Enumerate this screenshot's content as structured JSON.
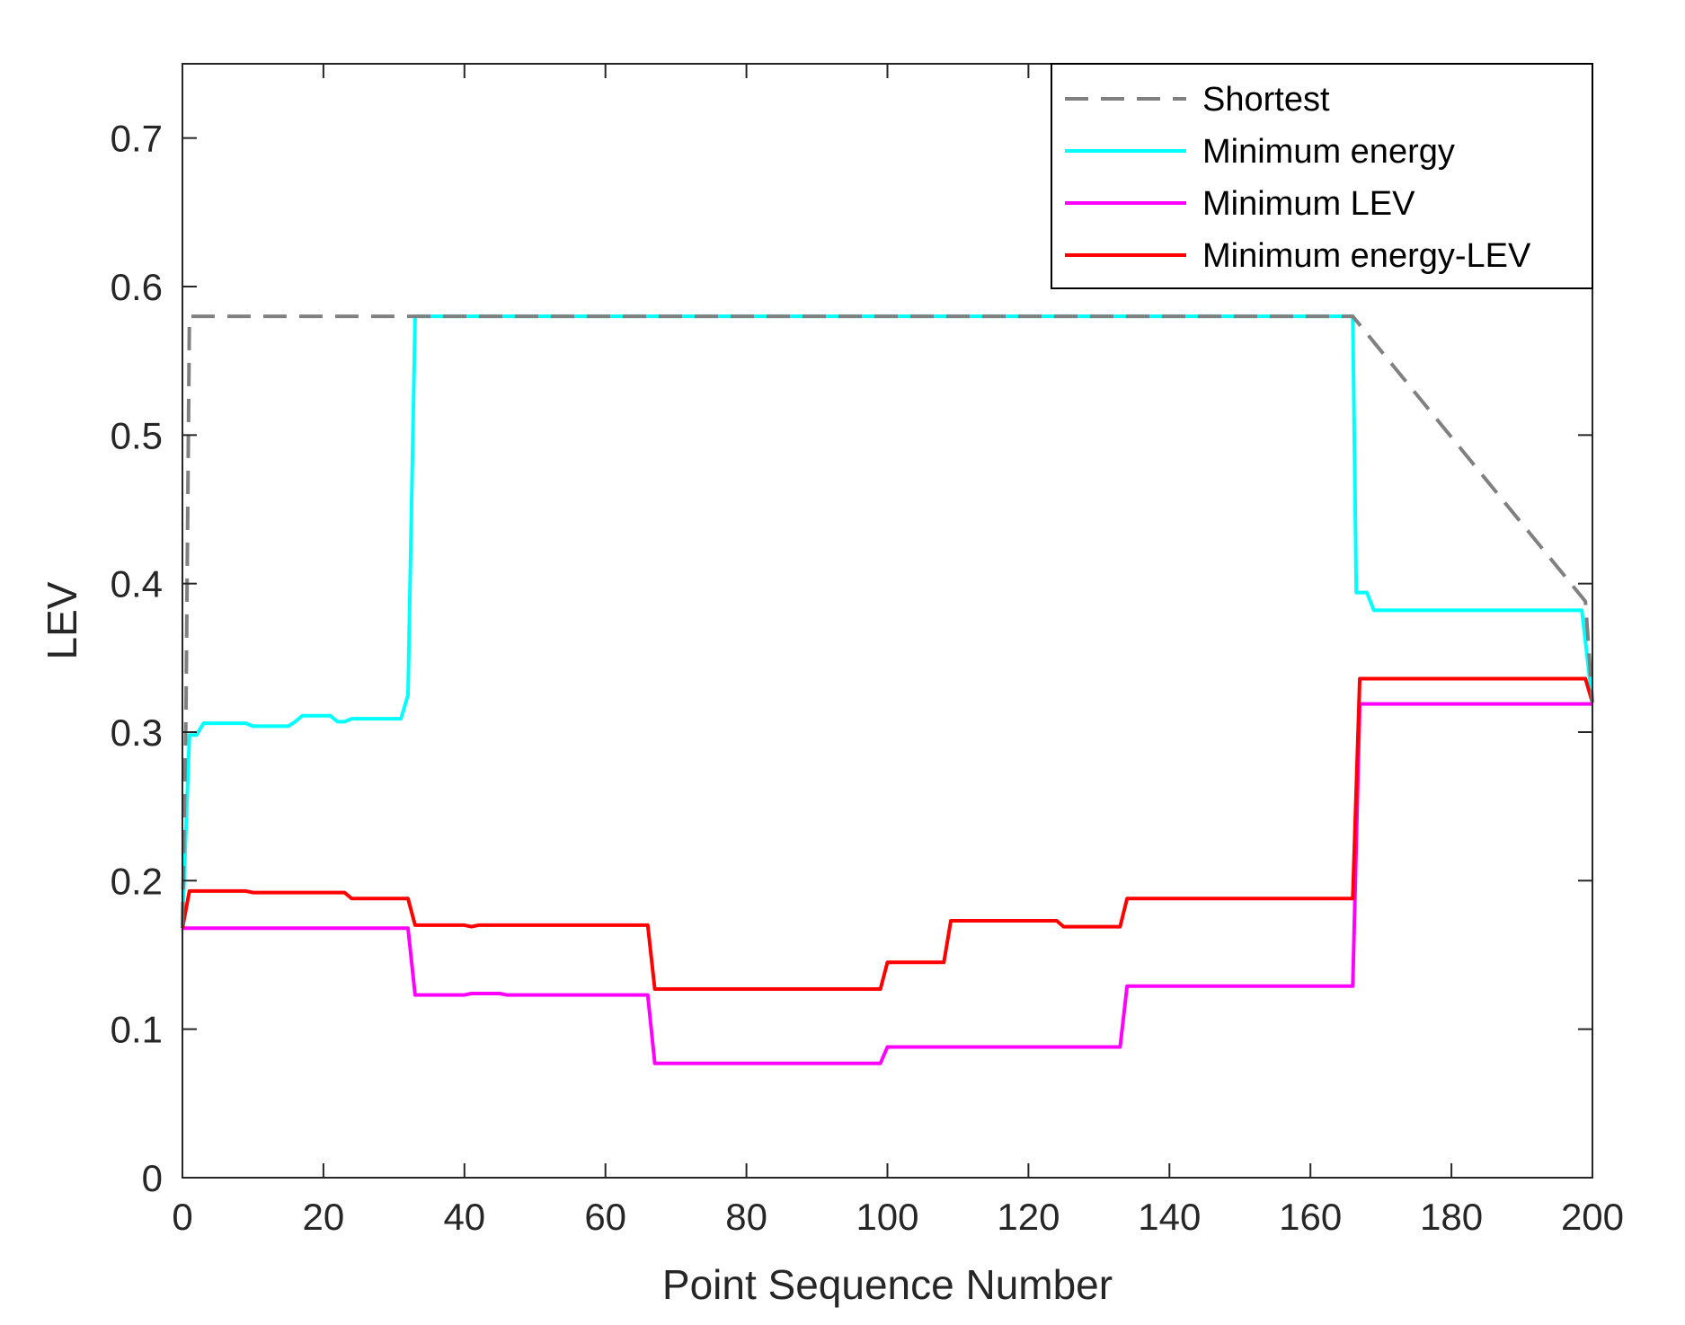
{
  "chart_data": {
    "type": "line",
    "title": "",
    "xlabel": "Point Sequence Number",
    "ylabel": "LEV",
    "xlim": [
      0,
      200
    ],
    "ylim": [
      0,
      0.75
    ],
    "xticks": [
      0,
      20,
      40,
      60,
      80,
      100,
      120,
      140,
      160,
      180,
      200
    ],
    "xtick_labels": [
      "0",
      "20",
      "40",
      "60",
      "80",
      "100",
      "120",
      "140",
      "160",
      "180",
      "200"
    ],
    "yticks": [
      0,
      0.1,
      0.2,
      0.3,
      0.4,
      0.5,
      0.6,
      0.7
    ],
    "ytick_labels": [
      "0",
      "0.1",
      "0.2",
      "0.3",
      "0.4",
      "0.5",
      "0.6",
      "0.7"
    ],
    "grid": false,
    "legend_position": "top-right",
    "series": [
      {
        "name": "Shortest",
        "color": "#808080",
        "dash": true,
        "x": [
          0,
          0.5,
          1,
          32.5,
          166,
          199,
          200
        ],
        "y": [
          0.17,
          0.31,
          0.58,
          0.58,
          0.58,
          0.388,
          0.32
        ]
      },
      {
        "name": "Minimum energy",
        "color": "#00FFFF",
        "dash": false,
        "x": [
          0,
          1,
          2,
          3,
          9,
          10,
          15,
          16,
          17,
          21,
          22,
          23,
          24,
          31,
          32,
          33,
          166,
          166.5,
          168,
          169,
          198,
          198.5,
          200
        ],
        "y": [
          0.17,
          0.298,
          0.298,
          0.306,
          0.306,
          0.304,
          0.304,
          0.307,
          0.311,
          0.311,
          0.307,
          0.307,
          0.309,
          0.309,
          0.325,
          0.58,
          0.58,
          0.394,
          0.394,
          0.382,
          0.382,
          0.382,
          0.32
        ]
      },
      {
        "name": "Minimum LEV",
        "color": "#FF00FF",
        "dash": false,
        "x": [
          0,
          32,
          33,
          40,
          41,
          45,
          46,
          66,
          67,
          99,
          100,
          101,
          133,
          134,
          166,
          167,
          200
        ],
        "y": [
          0.168,
          0.168,
          0.123,
          0.123,
          0.124,
          0.124,
          0.123,
          0.123,
          0.077,
          0.077,
          0.088,
          0.088,
          0.088,
          0.129,
          0.129,
          0.319,
          0.319
        ]
      },
      {
        "name": "Minimum energy-LEV",
        "color": "#FF0000",
        "dash": false,
        "x": [
          0,
          1,
          9,
          10,
          23,
          24,
          32,
          33,
          40,
          41,
          42,
          66,
          67,
          99,
          100,
          108,
          109,
          124,
          125,
          133,
          134,
          166,
          167,
          199,
          200
        ],
        "y": [
          0.168,
          0.193,
          0.193,
          0.192,
          0.192,
          0.188,
          0.188,
          0.17,
          0.17,
          0.169,
          0.17,
          0.17,
          0.127,
          0.127,
          0.145,
          0.145,
          0.173,
          0.173,
          0.169,
          0.169,
          0.188,
          0.188,
          0.336,
          0.336,
          0.32
        ]
      }
    ]
  }
}
